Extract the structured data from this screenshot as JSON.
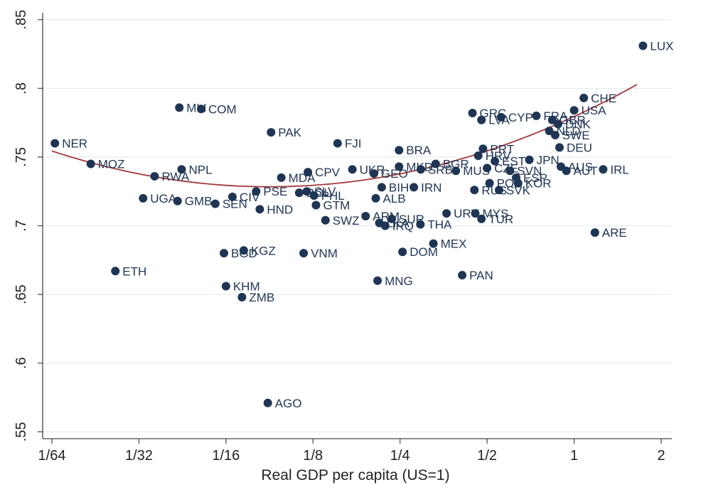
{
  "chart_data": {
    "type": "scatter",
    "title": "",
    "xlabel": "Real GDP per capita (US=1)",
    "ylabel": "",
    "x_scale": "log2",
    "xlim": [
      0.015625,
      2
    ],
    "ylim": [
      0.545,
      0.855
    ],
    "x_ticks": [
      0.015625,
      0.03125,
      0.0625,
      0.125,
      0.25,
      0.5,
      1,
      2
    ],
    "x_tick_labels": [
      "1/64",
      "1/32",
      "1/16",
      "1/8",
      "1/4",
      "1/2",
      "1",
      "2"
    ],
    "y_ticks": [
      0.55,
      0.6,
      0.65,
      0.7,
      0.75,
      0.8,
      0.85
    ],
    "y_tick_labels": [
      ".55",
      ".6",
      ".65",
      ".7",
      ".75",
      ".8",
      ".85"
    ],
    "grid": "horizontal",
    "marker_color": "#1f3554",
    "fit_color": "#a33a3a",
    "fit_line": {
      "type": "quadratic in log2(x)",
      "a": 0.7795,
      "b": 0.0292,
      "c": 0.00417
    },
    "points": [
      {
        "label": "LUX",
        "x": 1.73,
        "y": 0.831
      },
      {
        "label": "CHE",
        "x": 1.08,
        "y": 0.793
      },
      {
        "label": "USA",
        "x": 1.0,
        "y": 0.784
      },
      {
        "label": "IRL",
        "x": 1.26,
        "y": 0.741
      },
      {
        "label": "ARE",
        "x": 1.18,
        "y": 0.695
      },
      {
        "label": "NER",
        "x": 0.016,
        "y": 0.76
      },
      {
        "label": "MOZ",
        "x": 0.0213,
        "y": 0.745
      },
      {
        "label": "RWA",
        "x": 0.0354,
        "y": 0.736
      },
      {
        "label": "NPL",
        "x": 0.0439,
        "y": 0.741
      },
      {
        "label": "MLI",
        "x": 0.0431,
        "y": 0.786
      },
      {
        "label": "COM",
        "x": 0.0513,
        "y": 0.785
      },
      {
        "label": "PAK",
        "x": 0.0895,
        "y": 0.768
      },
      {
        "label": "FJI",
        "x": 0.152,
        "y": 0.76
      },
      {
        "label": "UGA",
        "x": 0.0323,
        "y": 0.72
      },
      {
        "label": "GMB",
        "x": 0.0425,
        "y": 0.718
      },
      {
        "label": "SEN",
        "x": 0.0574,
        "y": 0.716
      },
      {
        "label": "CIV",
        "x": 0.0658,
        "y": 0.721
      },
      {
        "label": "PSE",
        "x": 0.0795,
        "y": 0.725
      },
      {
        "label": "HND",
        "x": 0.0818,
        "y": 0.712
      },
      {
        "label": "MDA",
        "x": 0.0971,
        "y": 0.735
      },
      {
        "label": "CPV",
        "x": 0.12,
        "y": 0.739
      },
      {
        "label": "BOL",
        "x": 0.112,
        "y": 0.724
      },
      {
        "label": "SLV",
        "x": 0.119,
        "y": 0.725
      },
      {
        "label": "PHL",
        "x": 0.126,
        "y": 0.722
      },
      {
        "label": "GTM",
        "x": 0.128,
        "y": 0.715
      },
      {
        "label": "SWZ",
        "x": 0.138,
        "y": 0.704
      },
      {
        "label": "ETH",
        "x": 0.0259,
        "y": 0.667
      },
      {
        "label": "BGD",
        "x": 0.0615,
        "y": 0.68
      },
      {
        "label": "KGZ",
        "x": 0.072,
        "y": 0.682
      },
      {
        "label": "VNM",
        "x": 0.116,
        "y": 0.68
      },
      {
        "label": "KHM",
        "x": 0.0625,
        "y": 0.656
      },
      {
        "label": "ZMB",
        "x": 0.071,
        "y": 0.648
      },
      {
        "label": "AGO",
        "x": 0.0872,
        "y": 0.571
      },
      {
        "label": "UKR",
        "x": 0.171,
        "y": 0.741
      },
      {
        "label": "GEO",
        "x": 0.203,
        "y": 0.738
      },
      {
        "label": "BRA",
        "x": 0.248,
        "y": 0.755
      },
      {
        "label": "MKD",
        "x": 0.248,
        "y": 0.743
      },
      {
        "label": "SRB",
        "x": 0.295,
        "y": 0.741
      },
      {
        "label": "BIH",
        "x": 0.216,
        "y": 0.728
      },
      {
        "label": "ALB",
        "x": 0.206,
        "y": 0.72
      },
      {
        "label": "IRN",
        "x": 0.279,
        "y": 0.728
      },
      {
        "label": "ARM",
        "x": 0.19,
        "y": 0.707
      },
      {
        "label": "SUR",
        "x": 0.234,
        "y": 0.705
      },
      {
        "label": "LKA",
        "x": 0.212,
        "y": 0.702
      },
      {
        "label": "IRQ",
        "x": 0.222,
        "y": 0.7
      },
      {
        "label": "THA",
        "x": 0.294,
        "y": 0.701
      },
      {
        "label": "DOM",
        "x": 0.255,
        "y": 0.681
      },
      {
        "label": "MEX",
        "x": 0.326,
        "y": 0.687
      },
      {
        "label": "MNG",
        "x": 0.209,
        "y": 0.66
      },
      {
        "label": "PAN",
        "x": 0.41,
        "y": 0.664
      },
      {
        "label": "URY",
        "x": 0.362,
        "y": 0.709
      },
      {
        "label": "MYS",
        "x": 0.455,
        "y": 0.709
      },
      {
        "label": "TUR",
        "x": 0.478,
        "y": 0.705
      },
      {
        "label": "BGR",
        "x": 0.332,
        "y": 0.745
      },
      {
        "label": "MUS",
        "x": 0.39,
        "y": 0.74
      },
      {
        "label": "GRC",
        "x": 0.445,
        "y": 0.782
      },
      {
        "label": "LVA",
        "x": 0.478,
        "y": 0.777
      },
      {
        "label": "CYP",
        "x": 0.559,
        "y": 0.779
      },
      {
        "label": "PRT",
        "x": 0.484,
        "y": 0.756
      },
      {
        "label": "HRV",
        "x": 0.466,
        "y": 0.751
      },
      {
        "label": "EST",
        "x": 0.532,
        "y": 0.747
      },
      {
        "label": "CZE",
        "x": 0.5,
        "y": 0.742
      },
      {
        "label": "POL",
        "x": 0.51,
        "y": 0.731
      },
      {
        "label": "RUS",
        "x": 0.452,
        "y": 0.726
      },
      {
        "label": "SVK",
        "x": 0.55,
        "y": 0.726
      },
      {
        "label": "SVN",
        "x": 0.6,
        "y": 0.74
      },
      {
        "label": "ESP",
        "x": 0.63,
        "y": 0.735
      },
      {
        "label": "KOR",
        "x": 0.64,
        "y": 0.731
      },
      {
        "label": "JPN",
        "x": 0.7,
        "y": 0.748
      },
      {
        "label": "FRA",
        "x": 0.74,
        "y": 0.78
      },
      {
        "label": "GBR",
        "x": 0.84,
        "y": 0.777
      },
      {
        "label": "DNK",
        "x": 0.88,
        "y": 0.774
      },
      {
        "label": "NLD",
        "x": 0.82,
        "y": 0.769
      },
      {
        "label": "SWE",
        "x": 0.86,
        "y": 0.766
      },
      {
        "label": "DEU",
        "x": 0.89,
        "y": 0.757
      },
      {
        "label": "AUS",
        "x": 0.9,
        "y": 0.743
      },
      {
        "label": "AUT",
        "x": 0.94,
        "y": 0.74
      }
    ]
  }
}
